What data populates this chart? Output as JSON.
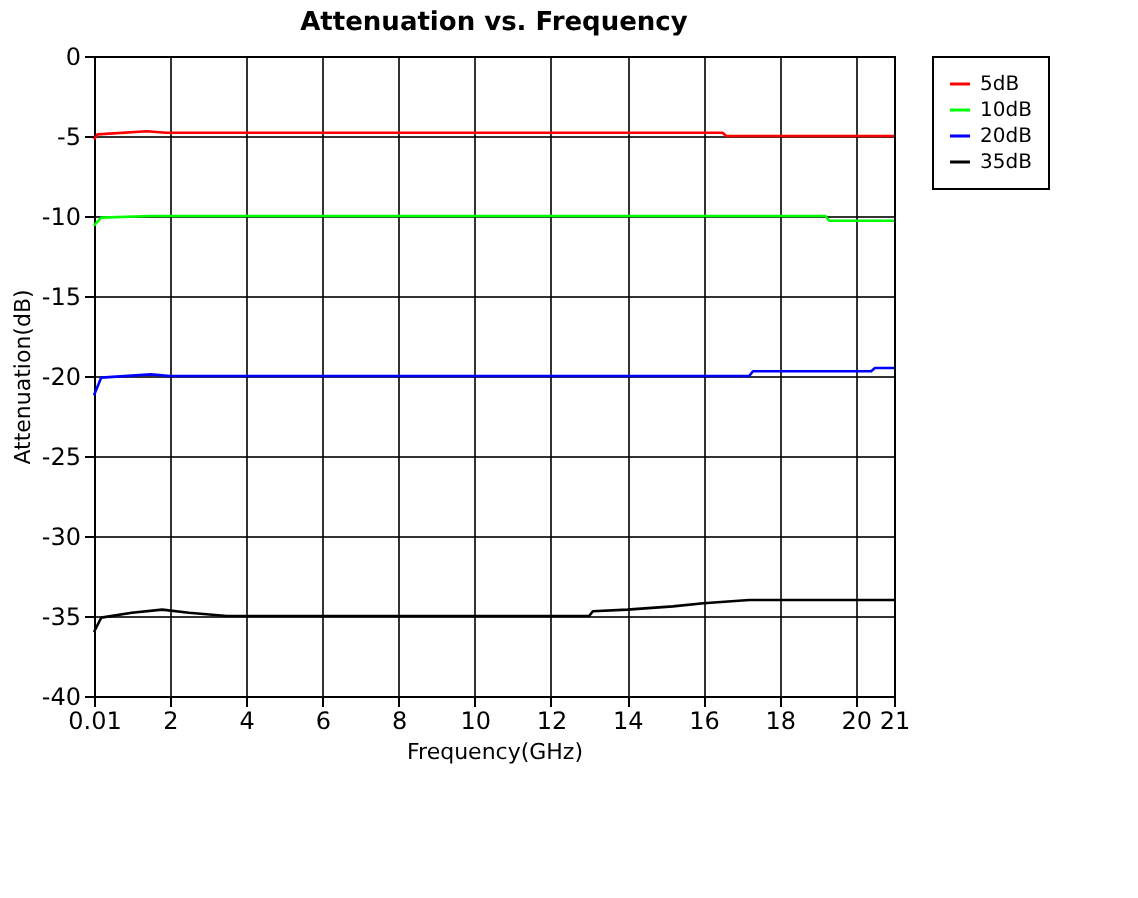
{
  "chart_data": {
    "type": "line",
    "title": "Attenuation vs. Frequency",
    "xlabel": "Frequency(GHz)",
    "ylabel": "Attenuation(dB)",
    "xlim": [
      0.01,
      21
    ],
    "xticks": [
      0.01,
      2,
      4,
      6,
      8,
      10,
      12,
      14,
      16,
      18,
      20,
      21
    ],
    "ylim": [
      -40,
      0
    ],
    "yticks": [
      -40,
      -35,
      -30,
      -25,
      -20,
      -15,
      -10,
      -5,
      0
    ],
    "grid": true,
    "legend": "right",
    "marker": "none",
    "line_style": "solid",
    "series": [
      {
        "name": "5dB",
        "color": "#ff0000",
        "x": [
          0.01,
          0.1,
          1.4,
          1.9,
          16.5,
          16.6,
          21
        ],
        "values": [
          -5.2,
          -4.9,
          -4.7,
          -4.8,
          -4.8,
          -5.0,
          -5.0
        ]
      },
      {
        "name": "10dB",
        "color": "#00ff00",
        "x": [
          0.01,
          0.2,
          1.5,
          19.2,
          19.3,
          21
        ],
        "values": [
          -10.6,
          -10.1,
          -10.0,
          -10.0,
          -10.3,
          -10.3
        ]
      },
      {
        "name": "20dB",
        "color": "#0000ff",
        "x": [
          0.01,
          0.2,
          1.5,
          2,
          17.2,
          17.3,
          20.4,
          20.5,
          21
        ],
        "values": [
          -21.2,
          -20.1,
          -19.9,
          -20.0,
          -20.0,
          -19.7,
          -19.7,
          -19.5,
          -19.5
        ]
      },
      {
        "name": "35dB",
        "color": "#000000",
        "x": [
          0.01,
          0.2,
          1,
          1.8,
          2.5,
          3.5,
          13,
          13.1,
          14,
          15.2,
          16,
          17.2,
          21
        ],
        "values": [
          -36.0,
          -35.1,
          -34.8,
          -34.6,
          -34.8,
          -35.0,
          -35.0,
          -34.7,
          -34.6,
          -34.4,
          -34.2,
          -34.0,
          -34.0
        ]
      }
    ]
  }
}
